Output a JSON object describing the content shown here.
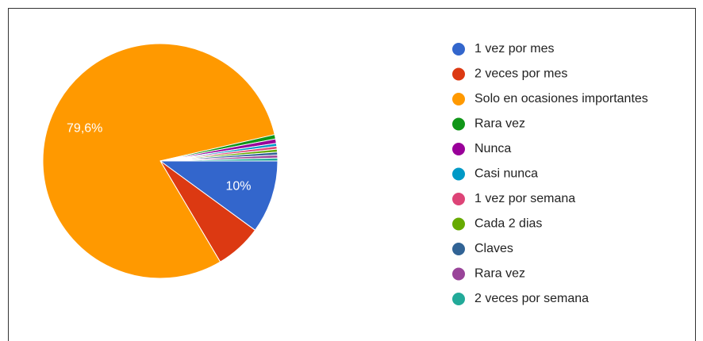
{
  "chart_data": {
    "type": "pie",
    "categories": [
      "1 vez por mes",
      "2 veces por mes",
      "Solo en ocasiones importantes",
      "Rara vez",
      "Nunca",
      "Casi nunca",
      "1 vez por semana",
      "Cada 2 dias",
      "Claves",
      "Rara vez",
      "2 veces por semana"
    ],
    "values": [
      10,
      6.4,
      79.6,
      0.6,
      0.6,
      0.4,
      0.4,
      0.4,
      0.4,
      0.4,
      0.4
    ],
    "value_labels": [
      "10%",
      null,
      "79,6%",
      null,
      null,
      null,
      null,
      null,
      null,
      null,
      null
    ],
    "colors": [
      "#3366cc",
      "#dc3912",
      "#ff9900",
      "#109618",
      "#990099",
      "#0099c6",
      "#dd4477",
      "#66aa00",
      "#316395",
      "#994499",
      "#22aa99"
    ],
    "legend": "right"
  }
}
